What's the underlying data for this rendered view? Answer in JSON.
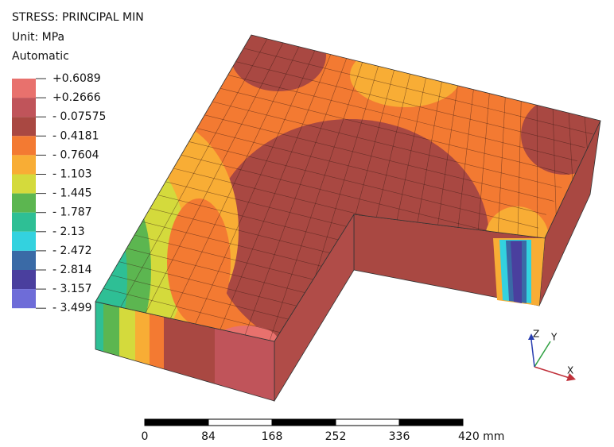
{
  "header": {
    "title": "STRESS: PRINCIPAL MIN",
    "unit": "Unit: MPa",
    "mode": "Automatic"
  },
  "legend": {
    "labels": [
      "+0.6089",
      "+0.2666",
      "- 0.07575",
      "- 0.4181",
      "- 0.7604",
      "- 1.103",
      "- 1.445",
      "- 1.787",
      "- 2.13",
      "- 2.472",
      "- 2.814",
      "- 3.157",
      "- 3.499"
    ],
    "colors": [
      "#e8716d",
      "#c0545a",
      "#a94842",
      "#f37a32",
      "#f8ad35",
      "#d4da3c",
      "#5cb650",
      "#2ebf95",
      "#33d2df",
      "#3a6aa6",
      "#4a3f9e",
      "#6e6cd8"
    ]
  },
  "scale_bar": {
    "labels": [
      "0",
      "84",
      "168",
      "252",
      "336",
      "420 mm"
    ]
  },
  "triad": {
    "z": "Z",
    "y": "Y",
    "x": "X"
  }
}
